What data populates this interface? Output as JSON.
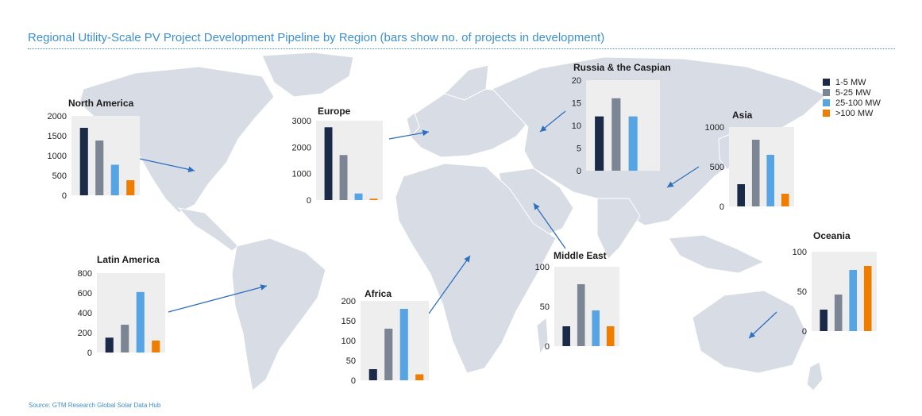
{
  "title": "Regional Utility-Scale PV Project Development Pipeline by Region (bars show no. of projects in development)",
  "source": "Source: GTM Research Global Solar Data Hub",
  "colors": {
    "title": "#3d8fd1",
    "map": "#d8dde5",
    "arrow": "#2e6fc0",
    "panel": "#eeeeee"
  },
  "legend": [
    {
      "label": "1-5 MW",
      "color": "#1b2a47"
    },
    {
      "label": "5-25 MW",
      "color": "#7c8593"
    },
    {
      "label": "25-100 MW",
      "color": "#56a4e3"
    },
    {
      "label": ">100 MW",
      "color": "#ef7d00"
    }
  ],
  "chart_data": [
    {
      "type": "bar",
      "title": "North America",
      "categories": [
        "1-5 MW",
        "5-25 MW",
        "25-100 MW",
        ">100 MW"
      ],
      "values": [
        1700,
        1380,
        770,
        380
      ],
      "ylim": [
        0,
        2000
      ],
      "yticks": [
        "0",
        "500",
        "1000",
        "1500",
        "2000"
      ]
    },
    {
      "type": "bar",
      "title": "Europe",
      "categories": [
        "1-5 MW",
        "5-25 MW",
        "25-100 MW",
        ">100 MW"
      ],
      "values": [
        2750,
        1700,
        250,
        50
      ],
      "ylim": [
        0,
        3000
      ],
      "yticks": [
        "0",
        "1000",
        "2000",
        "3000"
      ]
    },
    {
      "type": "bar",
      "title": "Russia & the Caspian",
      "categories": [
        "1-5 MW",
        "5-25 MW",
        "25-100 MW",
        ">100 MW"
      ],
      "values": [
        12,
        16,
        12,
        0
      ],
      "ylim": [
        0,
        20
      ],
      "yticks": [
        "0",
        "5",
        "10",
        "15",
        "20"
      ]
    },
    {
      "type": "bar",
      "title": "Asia",
      "categories": [
        "1-5 MW",
        "5-25 MW",
        "25-100 MW",
        ">100 MW"
      ],
      "values": [
        280,
        840,
        650,
        160
      ],
      "ylim": [
        0,
        1000
      ],
      "yticks": [
        "0",
        "500",
        "1000"
      ]
    },
    {
      "type": "bar",
      "title": "Latin America",
      "categories": [
        "1-5 MW",
        "5-25 MW",
        "25-100 MW",
        ">100 MW"
      ],
      "values": [
        150,
        280,
        610,
        120
      ],
      "ylim": [
        0,
        800
      ],
      "yticks": [
        "0",
        "200",
        "400",
        "600",
        "800"
      ]
    },
    {
      "type": "bar",
      "title": "Africa",
      "categories": [
        "1-5 MW",
        "5-25 MW",
        "25-100 MW",
        ">100 MW"
      ],
      "values": [
        28,
        130,
        180,
        15
      ],
      "ylim": [
        0,
        200
      ],
      "yticks": [
        "0",
        "50",
        "100",
        "150",
        "200"
      ]
    },
    {
      "type": "bar",
      "title": "Middle East",
      "categories": [
        "1-5 MW",
        "5-25 MW",
        "25-100 MW",
        ">100 MW"
      ],
      "values": [
        25,
        78,
        45,
        25
      ],
      "ylim": [
        0,
        100
      ],
      "yticks": [
        "0",
        "50",
        "100"
      ]
    },
    {
      "type": "bar",
      "title": "Oceania",
      "categories": [
        "1-5 MW",
        "5-25 MW",
        "25-100 MW",
        ">100 MW"
      ],
      "values": [
        27,
        46,
        77,
        82
      ],
      "ylim": [
        0,
        100
      ],
      "yticks": [
        "0",
        "50",
        "100"
      ]
    }
  ]
}
